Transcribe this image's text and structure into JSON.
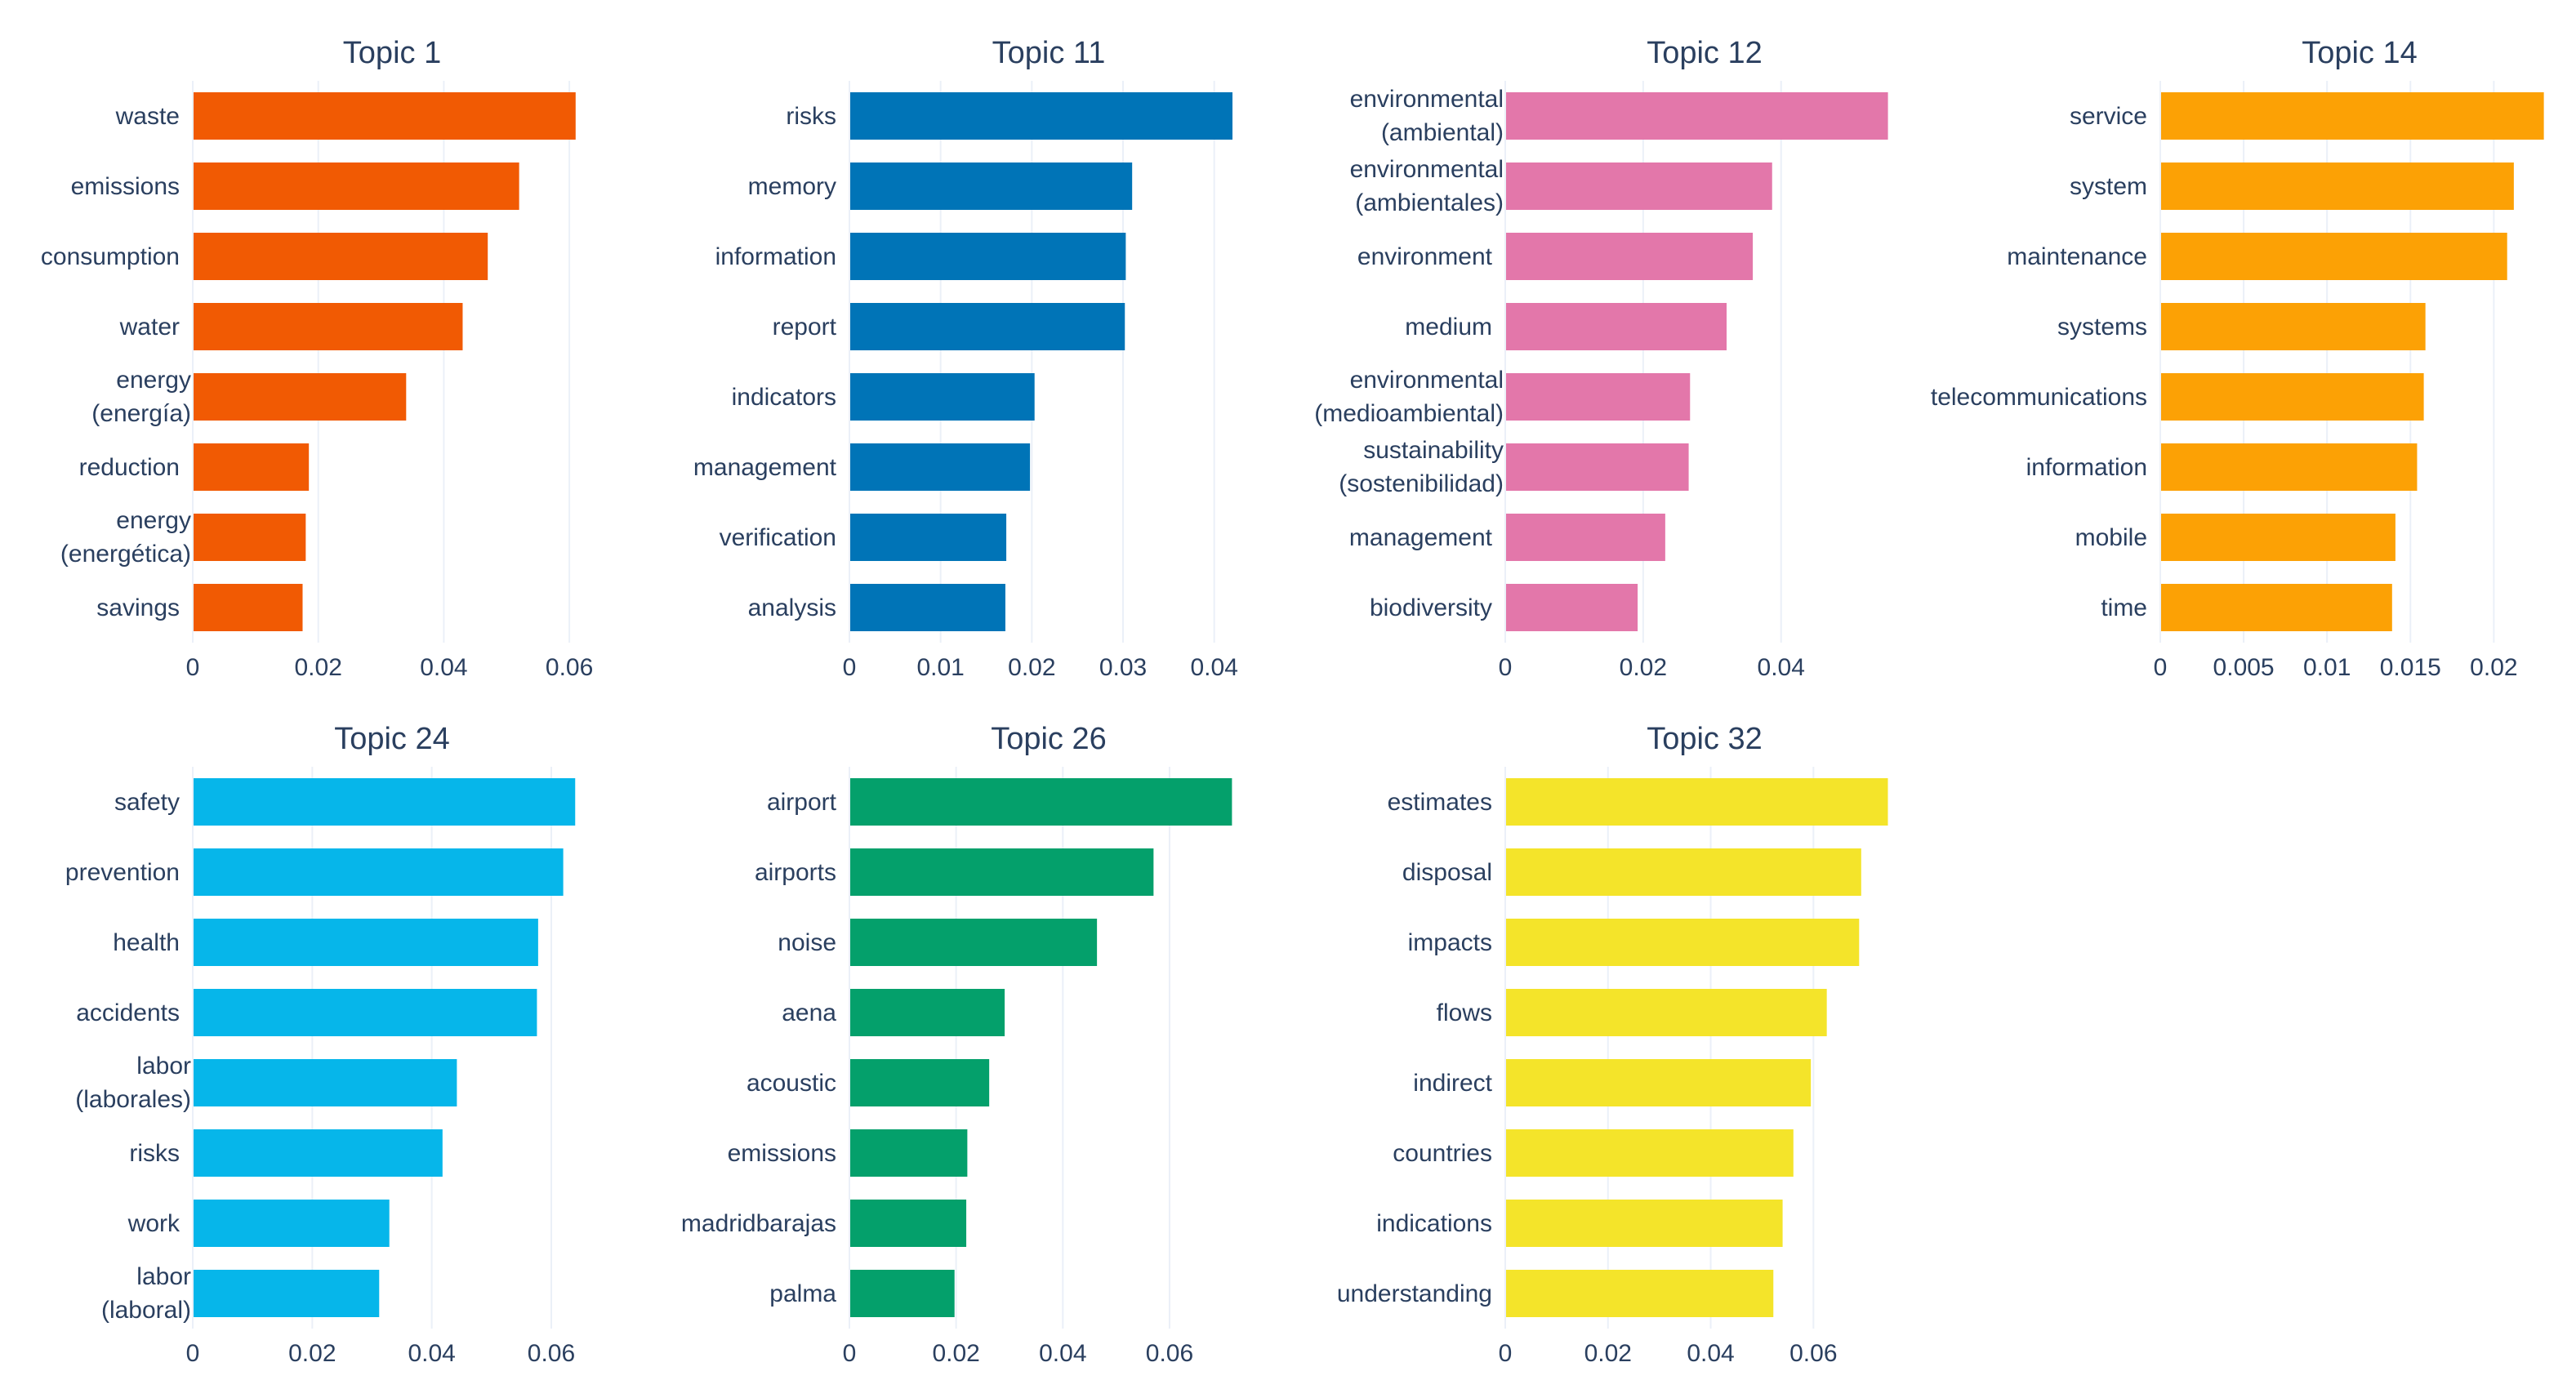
{
  "chart_data": [
    {
      "type": "bar",
      "orientation": "horizontal",
      "title": "Topic 1",
      "color": "#f15a03",
      "categories": [
        [
          "waste"
        ],
        [
          "emissions"
        ],
        [
          "consumption"
        ],
        [
          "water"
        ],
        [
          "energy",
          "(energía)"
        ],
        [
          "reduction"
        ],
        [
          "energy",
          "(energética)"
        ],
        [
          "savings"
        ]
      ],
      "values": [
        0.061,
        0.052,
        0.047,
        0.043,
        0.034,
        0.0185,
        0.018,
        0.0175
      ],
      "xlim": [
        0,
        0.0635
      ],
      "ticks": [
        0,
        0.02,
        0.04,
        0.06
      ],
      "tick_labels": [
        "0",
        "0.02",
        "0.04",
        "0.06"
      ]
    },
    {
      "type": "bar",
      "orientation": "horizontal",
      "title": "Topic 11",
      "color": "#0074b7",
      "categories": [
        [
          "risks"
        ],
        [
          "memory"
        ],
        [
          "information"
        ],
        [
          "report"
        ],
        [
          "indicators"
        ],
        [
          "management"
        ],
        [
          "verification"
        ],
        [
          "analysis"
        ]
      ],
      "values": [
        0.042,
        0.031,
        0.0303,
        0.0302,
        0.0203,
        0.0198,
        0.0172,
        0.0171
      ],
      "xlim": [
        0,
        0.0437
      ],
      "ticks": [
        0,
        0.01,
        0.02,
        0.03,
        0.04
      ],
      "tick_labels": [
        "0",
        "0.01",
        "0.02",
        "0.03",
        "0.04"
      ]
    },
    {
      "type": "bar",
      "orientation": "horizontal",
      "title": "Topic 12",
      "color": "#e377aa",
      "categories": [
        [
          "environmental",
          "(ambiental)"
        ],
        [
          "environmental",
          "(ambientales)"
        ],
        [
          "environment"
        ],
        [
          "medium"
        ],
        [
          "environmental",
          "(medioambiental)"
        ],
        [
          "sustainability",
          "(sostenibilidad)"
        ],
        [
          "management"
        ],
        [
          "biodiversity"
        ]
      ],
      "values": [
        0.0555,
        0.0387,
        0.0359,
        0.0321,
        0.0268,
        0.0266,
        0.0232,
        0.0192
      ],
      "xlim": [
        0,
        0.0578
      ],
      "ticks": [
        0,
        0.02,
        0.04
      ],
      "tick_labels": [
        "0",
        "0.02",
        "0.04"
      ]
    },
    {
      "type": "bar",
      "orientation": "horizontal",
      "title": "Topic 14",
      "color": "#fca105",
      "categories": [
        [
          "service"
        ],
        [
          "system"
        ],
        [
          "maintenance"
        ],
        [
          "systems"
        ],
        [
          "telecommunications"
        ],
        [
          "information"
        ],
        [
          "mobile"
        ],
        [
          "time"
        ]
      ],
      "values": [
        0.023,
        0.0212,
        0.0208,
        0.0159,
        0.0158,
        0.0154,
        0.0141,
        0.0139
      ],
      "xlim": [
        0,
        0.0239
      ],
      "ticks": [
        0,
        0.005,
        0.01,
        0.015,
        0.02
      ],
      "tick_labels": [
        "0",
        "0.005",
        "0.01",
        "0.015",
        "0.02"
      ]
    },
    {
      "type": "bar",
      "orientation": "horizontal",
      "title": "Topic 24",
      "color": "#06b6ea",
      "categories": [
        [
          "safety"
        ],
        [
          "prevention"
        ],
        [
          "health"
        ],
        [
          "accidents"
        ],
        [
          "labor",
          "(laborales)"
        ],
        [
          "risks"
        ],
        [
          "work"
        ],
        [
          "labor",
          "(laboral)"
        ]
      ],
      "values": [
        0.064,
        0.062,
        0.0578,
        0.0576,
        0.0442,
        0.0418,
        0.0329,
        0.0312
      ],
      "xlim": [
        0,
        0.0667
      ],
      "ticks": [
        0,
        0.02,
        0.04,
        0.06
      ],
      "tick_labels": [
        "0",
        "0.02",
        "0.04",
        "0.06"
      ]
    },
    {
      "type": "bar",
      "orientation": "horizontal",
      "title": "Topic 26",
      "color": "#04a06b",
      "categories": [
        [
          "airport"
        ],
        [
          "airports"
        ],
        [
          "noise"
        ],
        [
          "aena"
        ],
        [
          "acoustic"
        ],
        [
          "emissions"
        ],
        [
          "madridbarajas"
        ],
        [
          "palma"
        ]
      ],
      "values": [
        0.0717,
        0.057,
        0.0464,
        0.0291,
        0.0262,
        0.0221,
        0.0219,
        0.0197
      ],
      "xlim": [
        0,
        0.0747
      ],
      "ticks": [
        0,
        0.02,
        0.04,
        0.06
      ],
      "tick_labels": [
        "0",
        "0.02",
        "0.04",
        "0.06"
      ]
    },
    {
      "type": "bar",
      "orientation": "horizontal",
      "title": "Topic 32",
      "color": "#f4e42a",
      "categories": [
        [
          "estimates"
        ],
        [
          "disposal"
        ],
        [
          "impacts"
        ],
        [
          "flows"
        ],
        [
          "indirect"
        ],
        [
          "countries"
        ],
        [
          "indications"
        ],
        [
          "understanding"
        ]
      ],
      "values": [
        0.0745,
        0.0693,
        0.0689,
        0.0626,
        0.0595,
        0.0561,
        0.054,
        0.0522
      ],
      "xlim": [
        0,
        0.0776
      ],
      "ticks": [
        0,
        0.02,
        0.04,
        0.06
      ],
      "tick_labels": [
        "0",
        "0.02",
        "0.04",
        "0.06"
      ]
    }
  ]
}
